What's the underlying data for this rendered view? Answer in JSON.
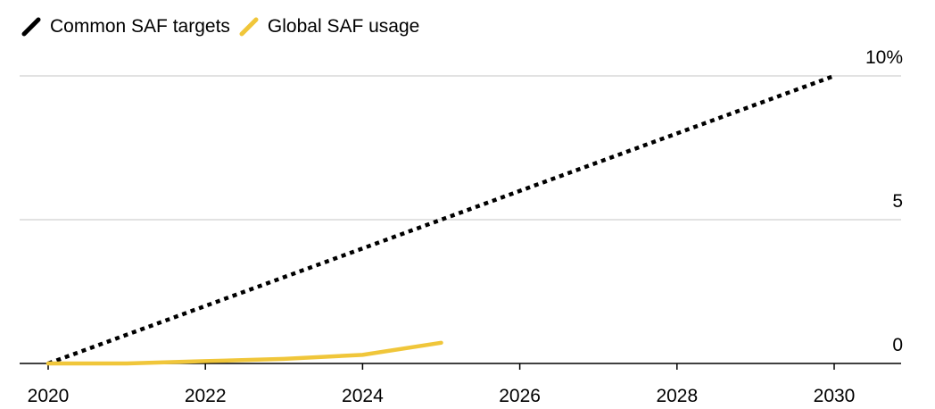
{
  "chart_data": {
    "type": "line",
    "title": "",
    "xlabel": "",
    "ylabel": "",
    "xlim": [
      2020,
      2030.85
    ],
    "ylim": [
      0,
      10
    ],
    "x_ticks": [
      2020,
      2022,
      2024,
      2026,
      2028,
      2030
    ],
    "x_tick_labels": [
      "2020",
      "2022",
      "2024",
      "2026",
      "2028",
      "2030"
    ],
    "y_ticks": [
      0,
      5,
      10
    ],
    "y_tick_labels": [
      "0",
      "5",
      "10%"
    ],
    "grid": true,
    "legend_position": "top-left",
    "series": [
      {
        "name": "Common SAF targets",
        "color": "#000000",
        "style": "dotted",
        "x": [
          2020,
          2030
        ],
        "y": [
          0,
          10
        ]
      },
      {
        "name": "Global SAF usage",
        "color": "#f0c63a",
        "style": "solid",
        "x": [
          2020,
          2021,
          2022,
          2023,
          2024,
          2025
        ],
        "y": [
          0.0,
          0.0,
          0.08,
          0.16,
          0.3,
          0.72
        ]
      }
    ]
  },
  "colors": {
    "gridline": "#d9d9d9",
    "axis": "#000000"
  }
}
